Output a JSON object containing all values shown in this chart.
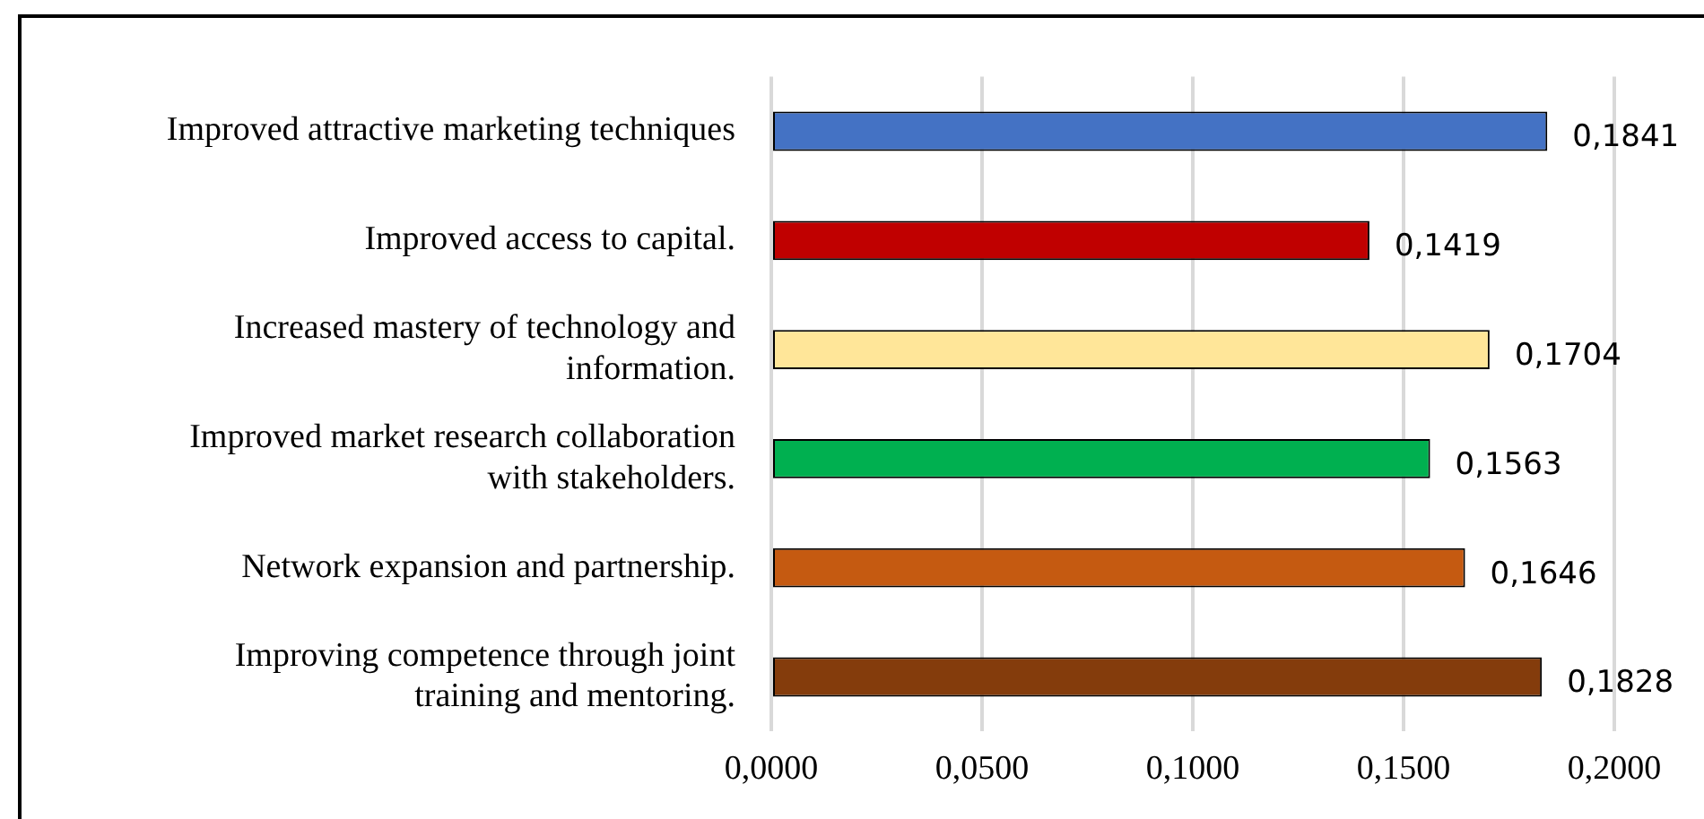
{
  "chart_data": {
    "type": "bar",
    "orientation": "horizontal",
    "categories": [
      "Improved attractive marketing techniques",
      "Improved access to capital.",
      "Increased mastery of technology and information.",
      "Improved market research collaboration with stakeholders.",
      "Network expansion and partnership.",
      "Improving competence through joint training and mentoring."
    ],
    "values": [
      0.1841,
      0.1419,
      0.1704,
      0.1563,
      0.1646,
      0.1828
    ],
    "colors": [
      "#4472c4",
      "#c00000",
      "#ffe699",
      "#00b050",
      "#c55a11",
      "#843c0c"
    ],
    "value_labels": [
      "0,1841",
      "0,1419",
      "0,1704",
      "0,1563",
      "0,1646",
      "0,1828"
    ],
    "xlim": [
      0,
      0.2
    ],
    "xticks": [
      {
        "value": 0,
        "label": "0,0000"
      },
      {
        "value": 0.05,
        "label": "0,0500"
      },
      {
        "value": 0.1,
        "label": "0,1000"
      },
      {
        "value": 0.15,
        "label": "0,1500"
      },
      {
        "value": 0.2,
        "label": "0,2000"
      }
    ],
    "grid": "x",
    "legend": false
  }
}
